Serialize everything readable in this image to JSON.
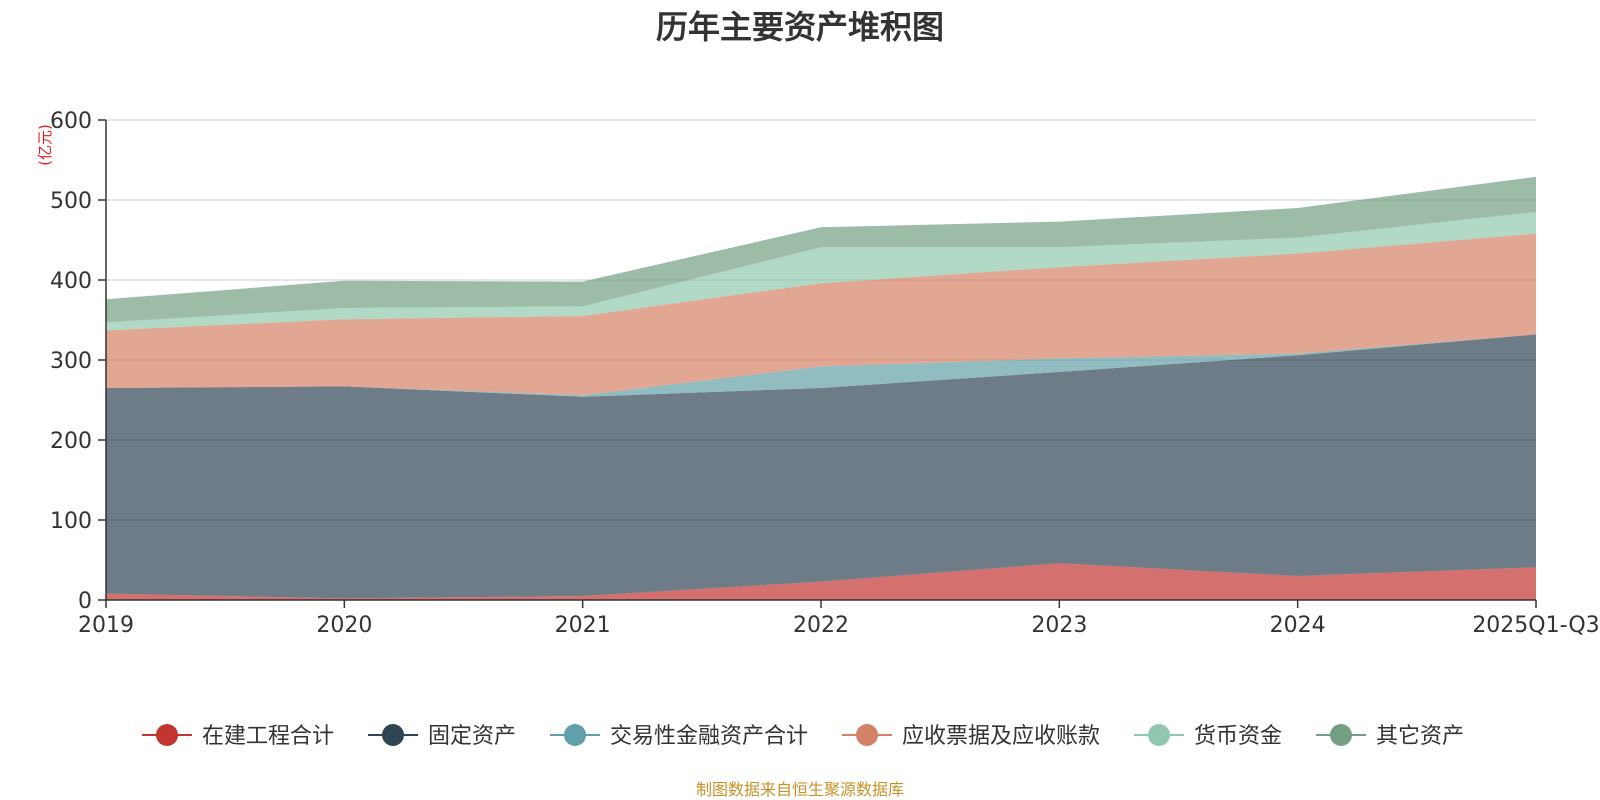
{
  "chart_data": {
    "type": "area",
    "stacked": true,
    "title": "历年主要资产堆积图",
    "unit": "(亿元)",
    "source": "制图数据来自恒生聚源数据库",
    "categories": [
      "2019",
      "2020",
      "2021",
      "2022",
      "2023",
      "2024",
      "2025Q1-Q3"
    ],
    "ylim": [
      0,
      600
    ],
    "yticks": [
      0,
      100,
      200,
      300,
      400,
      500,
      600
    ],
    "grid": true,
    "legend_position": "bottom",
    "series": [
      {
        "name": "在建工程合计",
        "color": "#c23531",
        "values": [
          8,
          2,
          5,
          23,
          46,
          30,
          41
        ]
      },
      {
        "name": "固定资产",
        "color": "#2f4554",
        "values": [
          257,
          265,
          249,
          242,
          239,
          276,
          291
        ]
      },
      {
        "name": "交易性金融资产合计",
        "color": "#61a0a8",
        "values": [
          0,
          0,
          2,
          27,
          17,
          2,
          0
        ]
      },
      {
        "name": "应收票据及应收账款",
        "color": "#d48265",
        "values": [
          72,
          84,
          99,
          104,
          114,
          125,
          126
        ]
      },
      {
        "name": "货币资金",
        "color": "#91c7ae",
        "values": [
          10,
          14,
          12,
          45,
          25,
          20,
          27
        ]
      },
      {
        "name": "其它资产",
        "color": "#749f83",
        "values": [
          29,
          34,
          31,
          25,
          32,
          37,
          44
        ]
      }
    ]
  }
}
